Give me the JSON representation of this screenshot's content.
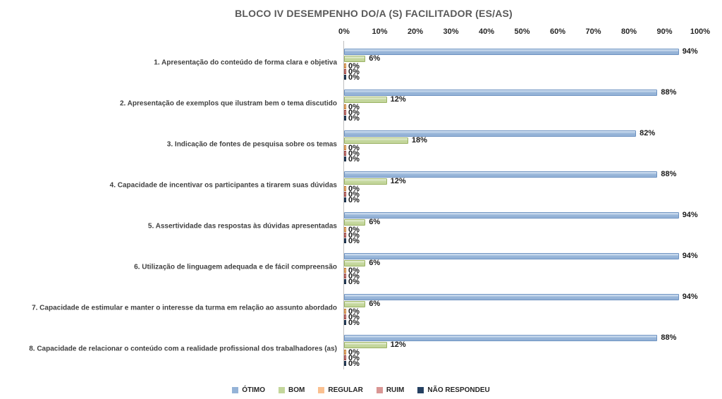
{
  "chart_data": {
    "type": "bar",
    "orientation": "horizontal",
    "title": "BLOCO IV DESEMPENHO DO/A (S) FACILITADOR (ES/AS)",
    "categories": [
      "1. Apresentação do conteúdo de forma clara e objetiva",
      "2. Apresentação de exemplos que ilustram bem o tema discutido",
      "3. Indicação de fontes de pesquisa sobre os temas",
      "4. Capacidade de incentivar os participantes a tirarem suas dúvidas",
      "5. Assertividade das respostas às dúvidas apresentadas",
      "6. Utilização de linguagem adequada e de fácil compreensão",
      "7. Capacidade de estimular e manter o interesse da turma em relação ao assunto abordado",
      "8. Capacidade de relacionar  o conteúdo com a realidade profissional dos trabalhadores (as)"
    ],
    "series": [
      {
        "name": "ÓTIMO",
        "color": "#95B3D7",
        "color_light": "#d9e6f4",
        "border": "#6d92c1",
        "values": [
          94,
          88,
          82,
          88,
          94,
          94,
          94,
          88
        ]
      },
      {
        "name": "BOM",
        "color": "#C3D69B",
        "color_light": "#e9f0da",
        "border": "#9ab263",
        "values": [
          6,
          12,
          18,
          12,
          6,
          6,
          6,
          12
        ]
      },
      {
        "name": "REGULAR",
        "color": "#FAC090",
        "color_light": "#fddcbb",
        "border": "#c0782f",
        "values": [
          0,
          0,
          0,
          0,
          0,
          0,
          0,
          0
        ]
      },
      {
        "name": "RUIM",
        "color": "#D99694",
        "color_light": "#ecc2c1",
        "border": "#943634",
        "values": [
          0,
          0,
          0,
          0,
          0,
          0,
          0,
          0
        ]
      },
      {
        "name": "NÃO RESPONDEU",
        "color": "#254061",
        "color_light": "#3a5a82",
        "border": "#17293f",
        "values": [
          0,
          0,
          0,
          0,
          0,
          0,
          0,
          0
        ]
      }
    ],
    "x_axis": {
      "position": "top",
      "min": 0,
      "max": 100,
      "ticks": [
        "0%",
        "10%",
        "20%",
        "30%",
        "40%",
        "50%",
        "60%",
        "70%",
        "80%",
        "90%",
        "100%"
      ]
    },
    "value_label_suffix": "%",
    "grid": false,
    "legend_position": "bottom"
  }
}
